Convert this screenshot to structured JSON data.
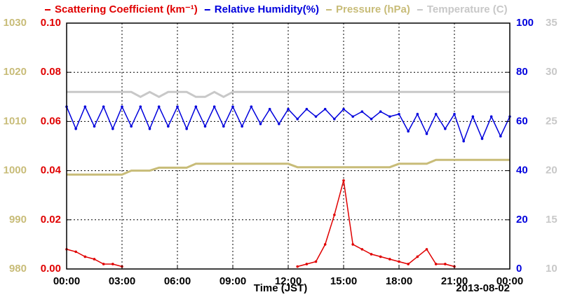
{
  "chart_data": {
    "type": "line",
    "x": [
      0,
      0.5,
      1,
      1.5,
      2,
      2.5,
      3,
      3.5,
      4,
      4.5,
      5,
      5.5,
      6,
      6.5,
      7,
      7.5,
      8,
      8.5,
      9,
      9.5,
      10,
      10.5,
      11,
      11.5,
      12,
      12.5,
      13,
      13.5,
      14,
      14.5,
      15,
      15.5,
      16,
      16.5,
      17,
      17.5,
      18,
      18.5,
      19,
      19.5,
      20,
      20.5,
      21,
      21.5,
      22,
      22.5,
      23,
      23.5,
      24
    ],
    "xlim": [
      0,
      24
    ],
    "xticks": [
      {
        "value": 0,
        "label": "00:00"
      },
      {
        "value": 3,
        "label": "03:00"
      },
      {
        "value": 6,
        "label": "06:00"
      },
      {
        "value": 9,
        "label": "09:00"
      },
      {
        "value": 12,
        "label": "12:00"
      },
      {
        "value": 15,
        "label": "15:00"
      },
      {
        "value": 18,
        "label": "18:00"
      },
      {
        "value": 21,
        "label": "21:00"
      },
      {
        "value": 24,
        "label": "00:00"
      }
    ],
    "xlabel": "Time (JST)",
    "date": "2013-08-02",
    "grid": true,
    "yaxes": [
      {
        "lim": [
          980,
          1030
        ],
        "ticks": [
          980,
          990,
          1000,
          1010,
          1020,
          1030
        ],
        "color": "#c8bc78"
      },
      {
        "lim": [
          0,
          0.1
        ],
        "ticks": [
          {
            "value": 0,
            "label": "0.00"
          },
          {
            "value": 0.02,
            "label": "0.02"
          },
          {
            "value": 0.04,
            "label": "0.04"
          },
          {
            "value": 0.06,
            "label": "0.06"
          },
          {
            "value": 0.08,
            "label": "0.08"
          },
          {
            "value": 0.1,
            "label": "0.10"
          }
        ],
        "color": "#e00000"
      },
      {
        "lim": [
          0,
          100
        ],
        "ticks": [
          0,
          20,
          40,
          60,
          80,
          100
        ],
        "color": "#0000dd"
      },
      {
        "lim": [
          10,
          35
        ],
        "ticks": [
          10,
          15,
          20,
          25,
          30,
          35
        ],
        "color": "#c8c8c8"
      }
    ],
    "series": [
      {
        "name": "Scattering Coefficient (km⁻¹)",
        "color": "#e00000",
        "axis": 1,
        "markers": true,
        "values": [
          0.008,
          0.007,
          0.005,
          0.004,
          0.002,
          0.002,
          0.001,
          null,
          null,
          null,
          null,
          null,
          null,
          null,
          null,
          null,
          null,
          null,
          null,
          null,
          null,
          null,
          null,
          null,
          null,
          0.001,
          0.002,
          0.003,
          0.01,
          0.022,
          0.036,
          0.01,
          0.008,
          0.006,
          0.005,
          0.004,
          0.003,
          0.002,
          0.005,
          0.008,
          0.002,
          0.002,
          0.001,
          null,
          null,
          null,
          null,
          null,
          null
        ]
      },
      {
        "name": "Relative Humidity(%)",
        "color": "#0000dd",
        "axis": 2,
        "markers": true,
        "values": [
          66,
          57,
          66,
          58,
          66,
          57,
          66,
          58,
          66,
          57,
          66,
          58,
          66,
          57,
          66,
          58,
          66,
          58,
          66,
          58,
          66,
          59,
          65,
          59,
          65,
          61,
          65,
          62,
          65,
          61,
          65,
          62,
          64,
          61,
          64,
          62,
          63,
          56,
          63,
          55,
          63,
          57,
          63,
          52,
          62,
          53,
          62,
          54,
          62
        ]
      },
      {
        "name": "Pressure (hPa)",
        "color": "#c8bc78",
        "axis": 0,
        "markers": false,
        "values": [
          999.2,
          999.2,
          999.2,
          999.2,
          999.2,
          999.2,
          999.2,
          1000.0,
          1000.0,
          1000.0,
          1000.6,
          1000.6,
          1000.6,
          1000.6,
          1001.4,
          1001.4,
          1001.4,
          1001.4,
          1001.4,
          1001.4,
          1001.4,
          1001.4,
          1001.4,
          1001.4,
          1001.4,
          1000.7,
          1000.7,
          1000.7,
          1000.7,
          1000.7,
          1000.7,
          1000.7,
          1000.7,
          1000.7,
          1000.7,
          1000.7,
          1001.4,
          1001.4,
          1001.4,
          1001.4,
          1002.2,
          1002.2,
          1002.2,
          1002.2,
          1002.2,
          1002.2,
          1002.2,
          1002.2,
          1002.2
        ]
      },
      {
        "name": "Temperature (C)",
        "color": "#c8c8c8",
        "axis": 3,
        "markers": false,
        "values": [
          28,
          28,
          28,
          28,
          28,
          28,
          28,
          28,
          27.5,
          28,
          27.5,
          28,
          28,
          28,
          27.5,
          27.5,
          28,
          27.5,
          28,
          28,
          28,
          28,
          28,
          28,
          28,
          28,
          28,
          28,
          28,
          28,
          28,
          28,
          28,
          28,
          28,
          28,
          28,
          28,
          28,
          28,
          28,
          28,
          28,
          28,
          28,
          28,
          28,
          28,
          28
        ]
      }
    ]
  }
}
